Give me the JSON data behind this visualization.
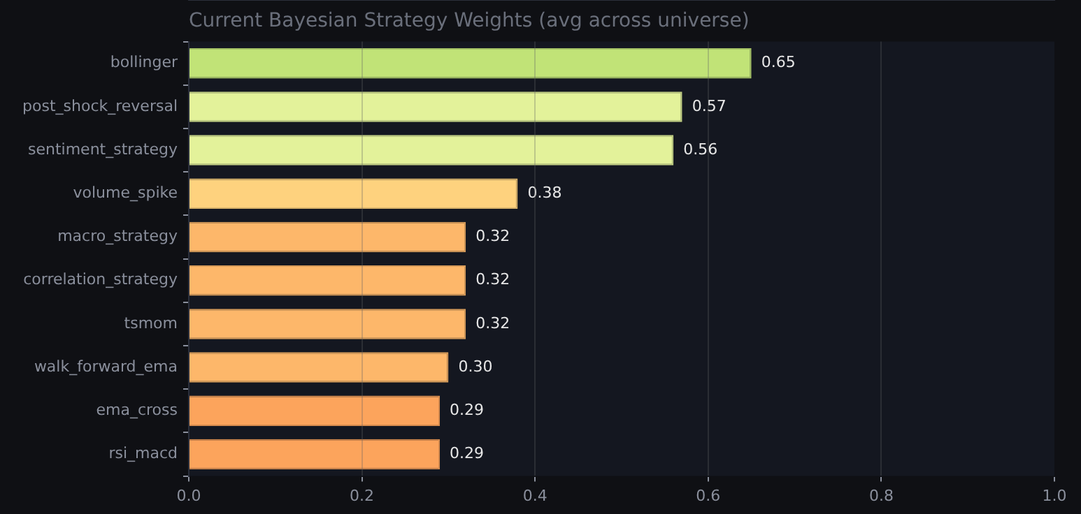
{
  "chart_data": {
    "type": "bar",
    "orientation": "horizontal",
    "title": "Current Bayesian Strategy Weights (avg across universe)",
    "categories": [
      "bollinger",
      "post_shock_reversal",
      "sentiment_strategy",
      "volume_spike",
      "macro_strategy",
      "correlation_strategy",
      "tsmom",
      "walk_forward_ema",
      "ema_cross",
      "rsi_macd"
    ],
    "values": [
      0.65,
      0.57,
      0.56,
      0.38,
      0.32,
      0.32,
      0.32,
      0.3,
      0.29,
      0.29
    ],
    "colors": [
      "#c1e377",
      "#e3f29a",
      "#e3f29a",
      "#fed27e",
      "#fdb76a",
      "#fdb76a",
      "#fdb76a",
      "#fdb76a",
      "#fca45c",
      "#fca45c"
    ],
    "xlim": [
      0,
      1
    ],
    "xticks": [
      {
        "value": 0,
        "label": "0.0"
      },
      {
        "value": 0.2,
        "label": "0.2"
      },
      {
        "value": 0.4,
        "label": "0.4"
      },
      {
        "value": 0.6,
        "label": "0.6"
      },
      {
        "value": 0.8,
        "label": "0.8"
      },
      {
        "value": 1,
        "label": "1.0"
      }
    ],
    "value_labels": [
      "0.65",
      "0.57",
      "0.56",
      "0.38",
      "0.32",
      "0.32",
      "0.32",
      "0.30",
      "0.29",
      "0.29"
    ],
    "grid": "x",
    "legend": false
  }
}
